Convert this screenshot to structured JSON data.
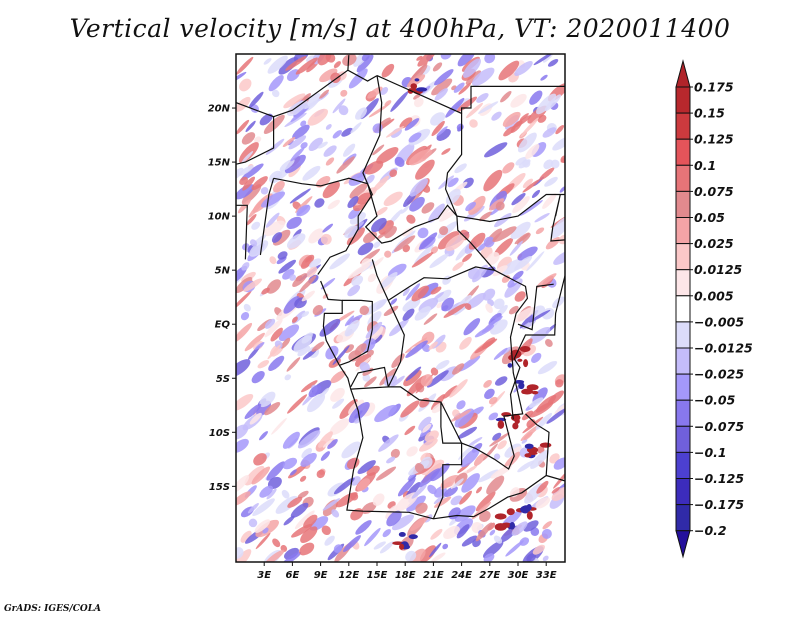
{
  "title": "Vertical velocity [m/s] at 400hPa, VT: 2020011400",
  "credit": "GrADS: IGES/COLA",
  "map": {
    "variable": "Vertical velocity",
    "units": "m/s",
    "level": "400hPa",
    "valid_time": "2020011400",
    "lon_range": [
      0,
      35
    ],
    "lat_range": [
      -22,
      25
    ],
    "lat_ticks": [
      {
        "value": 20,
        "label": "20N"
      },
      {
        "value": 15,
        "label": "15N"
      },
      {
        "value": 10,
        "label": "10N"
      },
      {
        "value": 5,
        "label": "5N"
      },
      {
        "value": 0,
        "label": "EQ"
      },
      {
        "value": -5,
        "label": "5S"
      },
      {
        "value": -10,
        "label": "10S"
      },
      {
        "value": -15,
        "label": "15S"
      }
    ],
    "lon_ticks": [
      {
        "value": 3,
        "label": "3E"
      },
      {
        "value": 6,
        "label": "6E"
      },
      {
        "value": 9,
        "label": "9E"
      },
      {
        "value": 12,
        "label": "12E"
      },
      {
        "value": 15,
        "label": "15E"
      },
      {
        "value": 18,
        "label": "18E"
      },
      {
        "value": 21,
        "label": "21E"
      },
      {
        "value": 24,
        "label": "24E"
      },
      {
        "value": 27,
        "label": "27E"
      },
      {
        "value": 30,
        "label": "30E"
      },
      {
        "value": 33,
        "label": "33E"
      }
    ]
  },
  "colorbar": {
    "boundaries": [
      "0.175",
      "0.15",
      "0.125",
      "0.1",
      "0.075",
      "0.05",
      "0.025",
      "0.0125",
      "0.005",
      "-0.005",
      "-0.0125",
      "-0.025",
      "-0.05",
      "-0.075",
      "-0.1",
      "-0.125",
      "-0.175",
      "-0.2"
    ],
    "colors_top_to_bottom": [
      "#b0242a",
      "#b8282d",
      "#cc3a3e",
      "#e4545a",
      "#e67478",
      "#e28a8e",
      "#f4a4a6",
      "#fbc8c8",
      "#fde6e8",
      "#ffffff",
      "#dcdcfa",
      "#c4bcfa",
      "#a498fa",
      "#8878ee",
      "#7060dc",
      "#4c40d0",
      "#3c2cbc",
      "#302aa8",
      "#24109c"
    ]
  }
}
